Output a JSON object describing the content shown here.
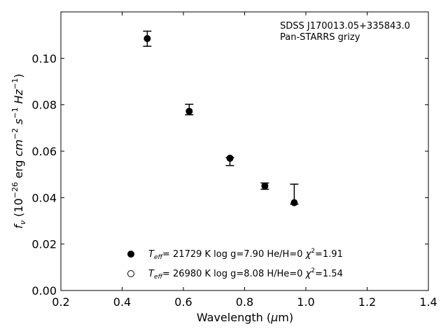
{
  "chart_data": {
    "type": "scatter",
    "xlabel": {
      "pre": "Wavelength (",
      "mu": "μ",
      "post": "m)"
    },
    "ylabel": {
      "f": "f",
      "nu": "ν",
      "a": " (10",
      "e1": "−26",
      "b": " erg ",
      "cm": "cm",
      "e2": "−2",
      "s": " s",
      "e3": "−1",
      "hz": " Hz",
      "e4": "−1",
      "c": ")"
    },
    "xlim": [
      0.2,
      1.4
    ],
    "ylim": [
      0.0,
      0.12
    ],
    "xticks": [
      "0.2",
      "0.4",
      "0.6",
      "0.8",
      "1.0",
      "1.2",
      "1.4"
    ],
    "xtick_values": [
      0.2,
      0.4,
      0.6,
      0.8,
      1.0,
      1.2,
      1.4
    ],
    "yticks": [
      "0.00",
      "0.02",
      "0.04",
      "0.06",
      "0.08",
      "0.10"
    ],
    "ytick_values": [
      0.0,
      0.02,
      0.04,
      0.06,
      0.08,
      0.1
    ],
    "grid": false,
    "annotation": [
      "SDSS J170013.05+335843.0",
      "Pan-STARRS grizy"
    ],
    "observed": {
      "x": [
        0.482,
        0.619,
        0.752,
        0.866,
        0.962
      ],
      "y": [
        0.1085,
        0.0775,
        0.0565,
        0.0455,
        0.0375
      ],
      "yerr_low": [
        0.1052,
        0.0757,
        0.0538,
        0.0436,
        0.0372
      ],
      "yerr_high": [
        0.1117,
        0.0802,
        0.0572,
        0.0463,
        0.0458
      ]
    },
    "series": [
      {
        "marker": "filled",
        "x": [
          0.482,
          0.619,
          0.752,
          0.866,
          0.962
        ],
        "y": [
          0.1085,
          0.0772,
          0.057,
          0.045,
          0.0378
        ],
        "legend": {
          "teff": "T",
          "eff": "eff",
          "rest1": "= 21729 K  log g=7.90  He/H=0  ",
          "chi": "χ",
          "sq": "2",
          "rest2": "=1.91"
        }
      },
      {
        "marker": "open",
        "x": [
          0.482,
          0.619,
          0.752,
          0.866,
          0.962
        ],
        "y": [
          0.1085,
          0.0772,
          0.0568,
          0.045,
          0.038
        ],
        "legend": {
          "teff": "T",
          "eff": "eff",
          "rest1": "= 26980 K  log g=8.08  H/He=0  ",
          "chi": "χ",
          "sq": "2",
          "rest2": "=1.54"
        }
      }
    ],
    "colors": {
      "axes": "#000000",
      "marker": "#000000",
      "background": "#ffffff"
    }
  }
}
